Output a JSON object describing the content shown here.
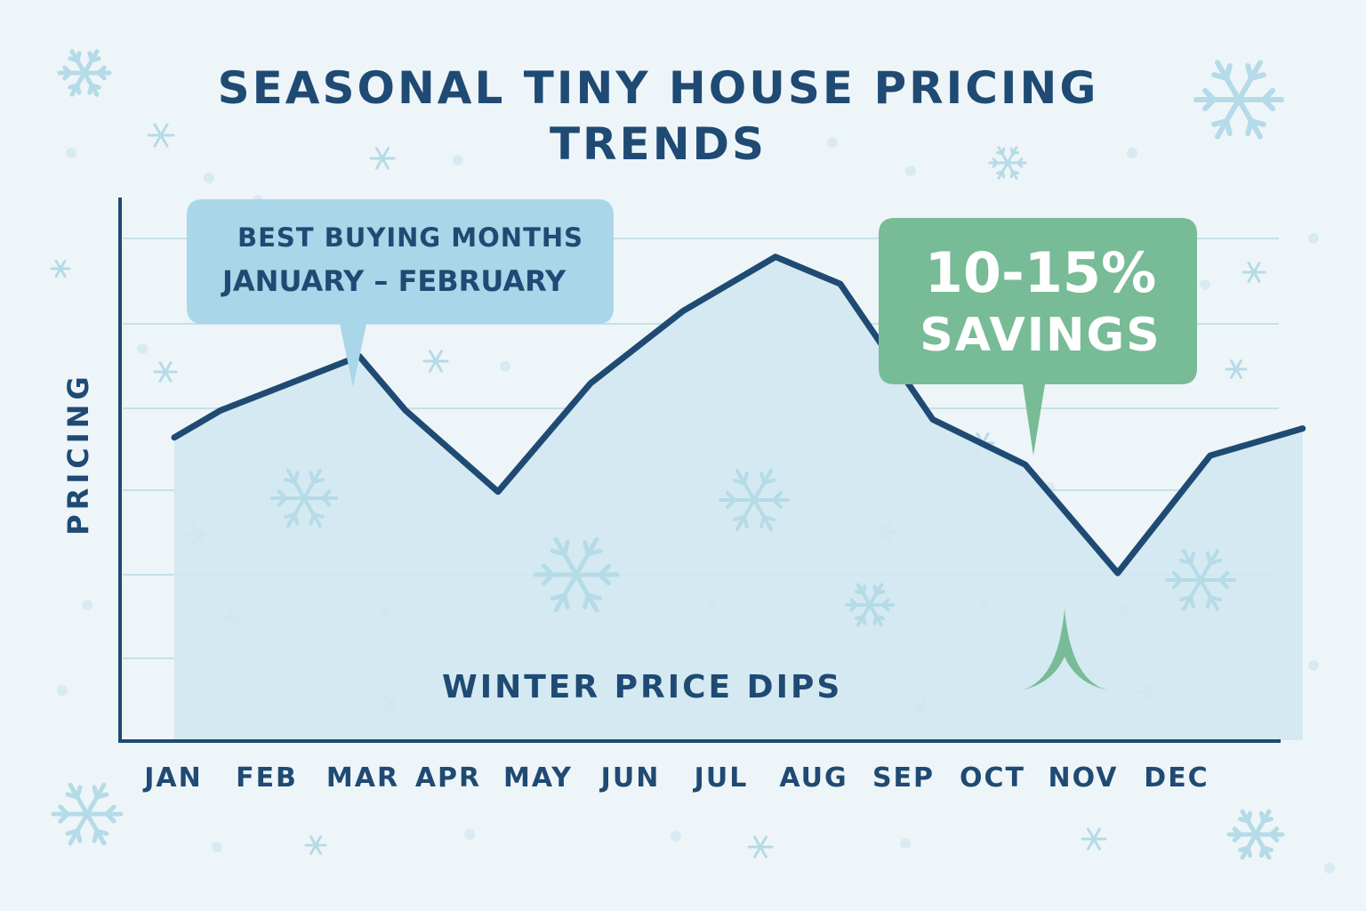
{
  "title_lines": [
    "SEASONAL TINY HOUSE PRICING",
    "TRENDS"
  ],
  "callouts": {
    "best_buying": {
      "line1": "BEST BUYING MONTHS",
      "line2": "JANUARY – FEBRUARY"
    },
    "savings": {
      "line1": "10-15%",
      "line2": "SAVINGS"
    }
  },
  "annotation": "WINTER PRICE DIPS",
  "colors": {
    "background": "#eef5f8",
    "line": "#1f4a73",
    "area_fill": "#d2e8f0",
    "grid": "#c5e0ea",
    "callout_blue": "#a9d6e8",
    "callout_green": "#78bb97",
    "snowflake": "#b5dbe8"
  },
  "chart_data": {
    "type": "area",
    "title": "SEASONAL TINY HOUSE PRICING TRENDS",
    "ylabel": "PRICING",
    "xlabel": "",
    "categories": [
      "JAN",
      "FEB",
      "MAR",
      "APR",
      "MAY",
      "JUN",
      "JUL",
      "AUG",
      "SEP",
      "OCT",
      "NOV",
      "DEC"
    ],
    "x": [
      0,
      0.5,
      2,
      2.5,
      3.5,
      4.5,
      5.5,
      6.5,
      7.2,
      8.2,
      9.2,
      10.2,
      11.2,
      12.2
    ],
    "values": [
      34,
      37,
      43,
      37,
      28,
      40,
      48,
      54,
      51,
      36,
      31,
      19,
      32,
      35
    ],
    "ylim": [
      0,
      65
    ],
    "y_tick_labels": false,
    "grid": true,
    "legend": "none"
  }
}
